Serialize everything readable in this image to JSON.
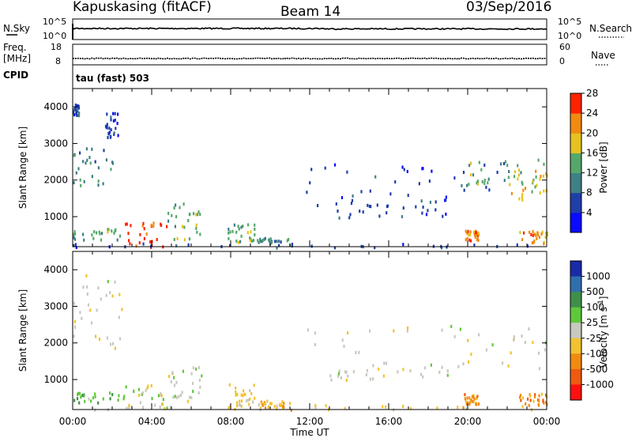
{
  "header": {
    "station": "Kapuskasing (fitACF)",
    "beam": "Beam 14",
    "date": "03/Sep/2016"
  },
  "strips": {
    "nsky_label": "N.Sky",
    "nsky_ticks": [
      "10^5",
      "10^0"
    ],
    "nsearch_label": "N.Search",
    "nsearch_ticks": [
      "10^5",
      "10^0"
    ],
    "freq_label": "Freq.",
    "freq_unit": "[MHz]",
    "freq_ticks": [
      "18",
      "8"
    ],
    "nave_label": "Nave",
    "nave_ticks": [
      "60",
      "0"
    ],
    "cpid_label": "CPID",
    "cpid_text": "tau (fast) 503"
  },
  "chart_data": [
    {
      "type": "heatmap",
      "name": "power-panel",
      "ylabel": "Slant Range [km]",
      "yticks": [
        "1000",
        "2000",
        "3000",
        "4000"
      ],
      "ylim": [
        180,
        4500
      ],
      "xlim": [
        0,
        24
      ],
      "colorbar_label": "Power [dB]",
      "colorbar_ticks": [
        "4",
        "8",
        "12",
        "16",
        "20",
        "24",
        "28"
      ],
      "colors": [
        "#0a0aff",
        "#1f3ea8",
        "#3f7f86",
        "#55a86a",
        "#e6c21e",
        "#f08a10",
        "#ff2200"
      ],
      "scatter_bands": [
        {
          "t0": 0.0,
          "t1": 2.0,
          "r0": 1850,
          "r1": 2900,
          "level": 2
        },
        {
          "t0": 0.0,
          "t1": 0.3,
          "r0": 3800,
          "r1": 4100,
          "level": 1
        },
        {
          "t0": 1.6,
          "t1": 2.3,
          "r0": 3200,
          "r1": 3900,
          "level": 1
        },
        {
          "t0": 0.0,
          "t1": 2.6,
          "r0": 400,
          "r1": 700,
          "level": 3
        },
        {
          "t0": 2.6,
          "t1": 4.8,
          "r0": 180,
          "r1": 900,
          "level": 6
        },
        {
          "t0": 4.8,
          "t1": 6.5,
          "r0": 400,
          "r1": 1400,
          "level": 3
        },
        {
          "t0": 7.8,
          "t1": 9.2,
          "r0": 300,
          "r1": 900,
          "level": 3
        },
        {
          "t0": 9.2,
          "t1": 11.0,
          "r0": 250,
          "r1": 450,
          "level": 2
        },
        {
          "t0": 11.8,
          "t1": 21.8,
          "r0": 1300,
          "r1": 2500,
          "level": 1
        },
        {
          "t0": 13.0,
          "t1": 19.0,
          "r0": 1000,
          "r1": 1500,
          "level": 1
        },
        {
          "t0": 19.5,
          "t1": 24.0,
          "r0": 1800,
          "r1": 2600,
          "level": 3
        },
        {
          "t0": 22.0,
          "t1": 24.0,
          "r0": 1500,
          "r1": 2300,
          "level": 4
        },
        {
          "t0": 19.8,
          "t1": 20.6,
          "r0": 350,
          "r1": 650,
          "level": 5
        },
        {
          "t0": 22.6,
          "t1": 24.0,
          "r0": 300,
          "r1": 650,
          "level": 5
        },
        {
          "t0": 0.0,
          "t1": 24.0,
          "r0": 180,
          "r1": 300,
          "level": 1
        }
      ]
    },
    {
      "type": "heatmap",
      "name": "velocity-panel",
      "ylabel": "Slant Range [km]",
      "yticks": [
        "1000",
        "2000",
        "3000",
        "4000"
      ],
      "ylim": [
        180,
        4500
      ],
      "xlim": [
        0,
        24
      ],
      "xlabel": "Time UT",
      "xticks": [
        "00:00",
        "04:00",
        "08:00",
        "12:00",
        "16:00",
        "20:00",
        "00:00"
      ],
      "colorbar_label": "Velocity [m s",
      "colorbar_sup": "-1",
      "colorbar_ticks": [
        "1000",
        "500",
        "100",
        "25",
        "-25",
        "-100",
        "-500",
        "-1000"
      ],
      "colors": [
        "#1a2aa8",
        "#2f6fae",
        "#3f8f4a",
        "#5fc83a",
        "#c8c8c0",
        "#f2c230",
        "#f08a10",
        "#ee5a10",
        "#ff1010"
      ],
      "scatter_bands": [
        {
          "t0": 0.0,
          "t1": 2.6,
          "r0": 1850,
          "r1": 3900,
          "level": 4
        },
        {
          "t0": 0.0,
          "t1": 2.6,
          "r0": 350,
          "r1": 700,
          "level": 3
        },
        {
          "t0": 2.6,
          "t1": 4.8,
          "r0": 200,
          "r1": 900,
          "level": 4
        },
        {
          "t0": 4.8,
          "t1": 6.5,
          "r0": 400,
          "r1": 1400,
          "level": 4
        },
        {
          "t0": 7.8,
          "t1": 9.2,
          "r0": 300,
          "r1": 900,
          "level": 5
        },
        {
          "t0": 9.2,
          "t1": 11.0,
          "r0": 250,
          "r1": 450,
          "level": 5
        },
        {
          "t0": 11.8,
          "t1": 24.0,
          "r0": 1300,
          "r1": 2500,
          "level": 4
        },
        {
          "t0": 13.0,
          "t1": 19.0,
          "r0": 1000,
          "r1": 1500,
          "level": 4
        },
        {
          "t0": 19.8,
          "t1": 20.6,
          "r0": 350,
          "r1": 650,
          "level": 6
        },
        {
          "t0": 22.6,
          "t1": 24.0,
          "r0": 300,
          "r1": 650,
          "level": 6
        },
        {
          "t0": 0.0,
          "t1": 24.0,
          "r0": 200,
          "r1": 350,
          "level": 5
        }
      ]
    }
  ]
}
